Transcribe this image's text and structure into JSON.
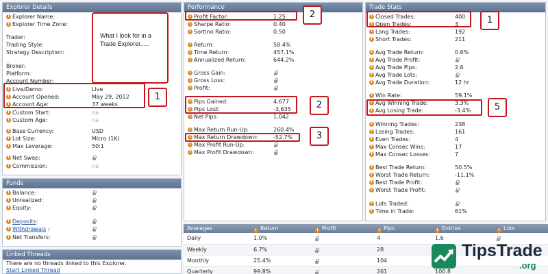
{
  "explorer": {
    "header": "Explorer Details",
    "name_label": "Explorer Name:",
    "timezone_label": "Explorer Time Zone:",
    "trader_label": "Trader:",
    "style_label": "Trading Style:",
    "strategy_label": "Strategy Description:",
    "broker_label": "Broker:",
    "platform_label": "Platform:",
    "account_number_label": "Account Number:",
    "livedemo_label": "Live/Demo:",
    "livedemo_value": "Live",
    "opened_label": "Account Opened:",
    "opened_value": "May 29, 2012",
    "age_label": "Account Age:",
    "age_value": "37 weeks",
    "custom_start_label": "Custom Start:",
    "custom_start_value": "na",
    "custom_age_label": "Custom Age:",
    "custom_age_value": "na",
    "currency_label": "Base Currency:",
    "currency_value": "USD",
    "lot_label": "Lot Size:",
    "lot_value": "Micro (1K)",
    "leverage_label": "Max Leverage:",
    "leverage_value": "50:1",
    "swap_label": "Net Swap:",
    "commission_label": "Commission:",
    "commission_value": "na"
  },
  "note": {
    "text": "What I look for in a Trade Explorer....."
  },
  "funds": {
    "header": "Funds",
    "balance_label": "Balance:",
    "unrealized_label": "Unrealized:",
    "equity_label": "Equity:",
    "deposits_label": "Deposits",
    "withdrawals_label": "Withdrawals",
    "net_transfers_label": "Net Transfers:"
  },
  "threads": {
    "header": "Linked Threads",
    "empty_text": "There are no threads linked to this Explorer.",
    "start_link": "Start Linked Thread"
  },
  "performance": {
    "header": "Performance",
    "rows": [
      {
        "label": "Profit Factor:",
        "value": "1.25"
      },
      {
        "label": "Sharpe Ratio:",
        "value": "0.40"
      },
      {
        "label": "Sortino Ratio:",
        "value": "0.50"
      },
      {
        "label": "Return:",
        "value": "58.4%"
      },
      {
        "label": "Time Return:",
        "value": "457.1%"
      },
      {
        "label": "Annualized Return:",
        "value": "644.2%"
      },
      {
        "label": "Gross Gain:",
        "value": ""
      },
      {
        "label": "Gross Loss:",
        "value": ""
      },
      {
        "label": "Profit:",
        "value": ""
      },
      {
        "label": "Pips Gained:",
        "value": "4,677"
      },
      {
        "label": "Pips Lost:",
        "value": "-3,635"
      },
      {
        "label": "Net Pips:",
        "value": "1,042"
      },
      {
        "label": "Max Return Run-Up:",
        "value": "260.4%"
      },
      {
        "label": "Max Return Drawdown:",
        "value": "-52.7%"
      },
      {
        "label": "Max Profit Run-Up:",
        "value": ""
      },
      {
        "label": "Max Profit Drawdown:",
        "value": ""
      }
    ]
  },
  "stats": {
    "header": "Trade Stats",
    "rows": [
      {
        "label": "Closed Trades:",
        "value": "400"
      },
      {
        "label": "Open Trades:",
        "value": "3"
      },
      {
        "label": "Long Trades:",
        "value": "192"
      },
      {
        "label": "Short Trades:",
        "value": "211"
      },
      {
        "label": "Avg Trade Return:",
        "value": "0.6%"
      },
      {
        "label": "Avg Trade Profit:",
        "value": ""
      },
      {
        "label": "Avg Trade Pips:",
        "value": "2.6"
      },
      {
        "label": "Avg Trade Lots:",
        "value": ""
      },
      {
        "label": "Avg Trade Duration:",
        "value": "12 hr"
      },
      {
        "label": "Win Rate:",
        "value": "59.1%"
      },
      {
        "label": "Avg Winning Trade:",
        "value": "3.3%"
      },
      {
        "label": "Avg Losing Trade:",
        "value": "-3.4%"
      },
      {
        "label": "Winning Trades:",
        "value": "238"
      },
      {
        "label": "Losing Trades:",
        "value": "161"
      },
      {
        "label": "Even Trades:",
        "value": "4"
      },
      {
        "label": "Max Consec Wins:",
        "value": "17"
      },
      {
        "label": "Max Consec Losses:",
        "value": "7"
      },
      {
        "label": "Best Trade Return:",
        "value": "50.5%"
      },
      {
        "label": "Worst Trade Return:",
        "value": "-11.1%"
      },
      {
        "label": "Best Trade Profit:",
        "value": ""
      },
      {
        "label": "Worst Trade Profit:",
        "value": ""
      },
      {
        "label": "Lots Traded:",
        "value": ""
      },
      {
        "label": "Time in Trade:",
        "value": "61%"
      }
    ]
  },
  "averages": {
    "headers": [
      "Averages",
      "Return",
      "Profit",
      "Pips",
      "Entries",
      "Lots"
    ],
    "rows": [
      {
        "period": "Daily",
        "return": "1.0%",
        "pips": "4",
        "entries": "1.6"
      },
      {
        "period": "Weekly",
        "return": "6.7%",
        "pips": "28",
        "entries": ""
      },
      {
        "period": "Monthly",
        "return": "25.4%",
        "pips": "104",
        "entries": ""
      },
      {
        "period": "Quarterly",
        "return": "99.8%",
        "pips": "261",
        "entries": "100.8"
      }
    ]
  },
  "badges": {
    "b1a": "1",
    "b2a": "2",
    "b1b": "1",
    "b2b": "2",
    "b3": "3",
    "b5": "5"
  },
  "watermark": {
    "brand": "TipsTrade",
    "tld": ".org"
  },
  "colors": {
    "highlight": "#c3151b",
    "header": "#6c7f99",
    "brand": "#18895a"
  }
}
